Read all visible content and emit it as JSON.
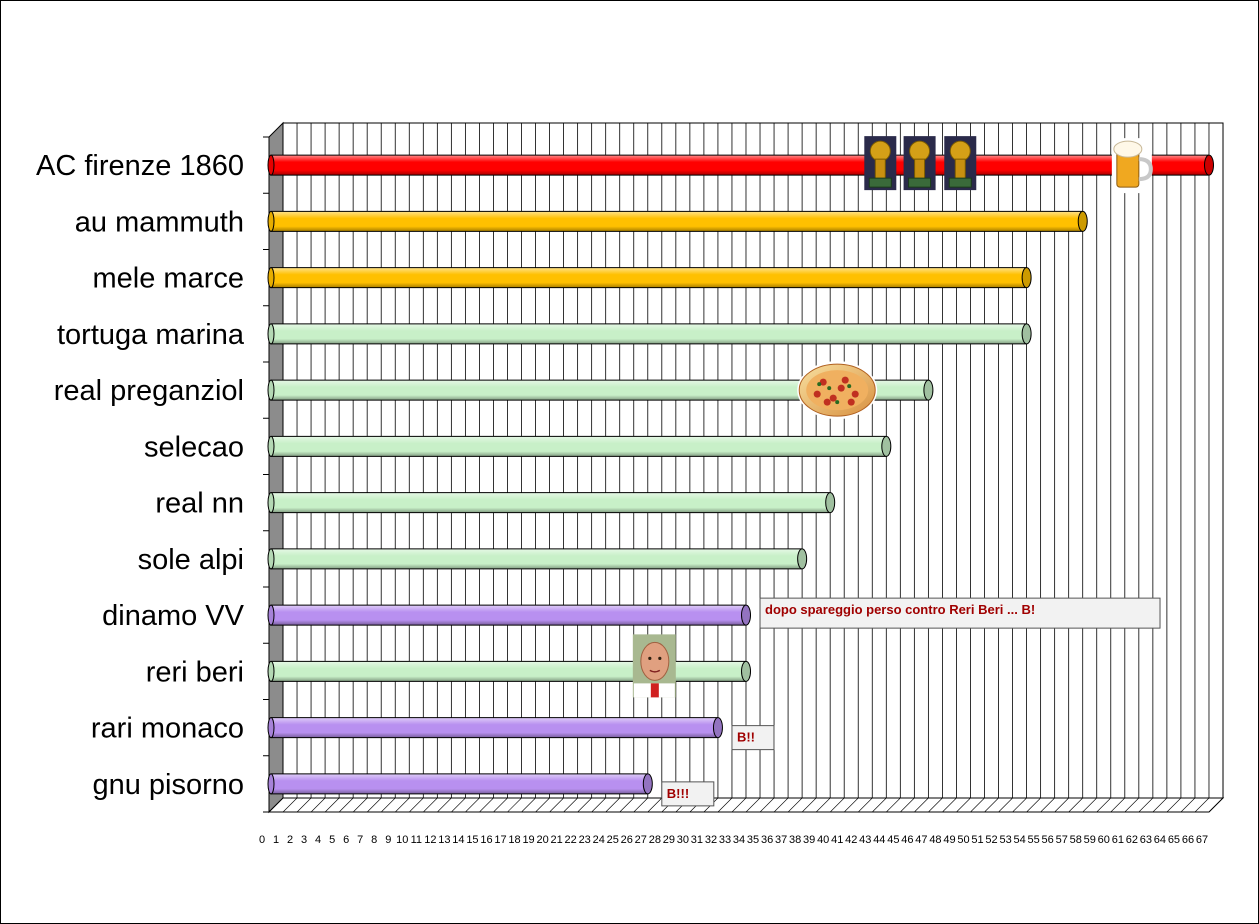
{
  "chart_data": {
    "type": "bar",
    "orientation": "horizontal",
    "categories": [
      "AC firenze 1860",
      "au mammuth",
      "mele marce",
      "tortuga marina",
      "real preganziol",
      "selecao",
      "real nn",
      "sole alpi",
      "dinamo VV",
      "reri beri",
      "rari monaco",
      "gnu pisorno"
    ],
    "values": [
      67,
      58,
      54,
      54,
      47,
      44,
      40,
      38,
      34,
      34,
      32,
      27
    ],
    "bar_colors": [
      "#ff0000",
      "#ffc000",
      "#ffc000",
      "#c8f0c8",
      "#c8f0c8",
      "#c8f0c8",
      "#c8f0c8",
      "#c8f0c8",
      "#b890f0",
      "#c8f0c8",
      "#b890f0",
      "#b890f0"
    ],
    "xlim": [
      0,
      67
    ],
    "x_ticks": [
      0,
      1,
      2,
      3,
      4,
      5,
      6,
      7,
      8,
      9,
      10,
      11,
      12,
      13,
      14,
      15,
      16,
      17,
      18,
      19,
      20,
      21,
      22,
      23,
      24,
      25,
      26,
      27,
      28,
      29,
      30,
      31,
      32,
      33,
      34,
      35,
      36,
      37,
      38,
      39,
      40,
      41,
      42,
      43,
      44,
      45,
      46,
      47,
      48,
      49,
      50,
      51,
      52,
      53,
      54,
      55,
      56,
      57,
      58,
      59,
      60,
      61,
      62,
      63,
      64,
      65,
      66,
      67
    ],
    "grid": "vertical",
    "style": "3d-cylinder",
    "annotations": [
      {
        "text": "dopo spareggio perso contro Reri Beri ... B!",
        "category": "dinamo VV"
      },
      {
        "text": "B!!",
        "category": "rari monaco"
      },
      {
        "text": "B!!!",
        "category": "gnu pisorno"
      }
    ],
    "pictures": [
      {
        "icon": "trophy-icon",
        "category": "AC firenze 1860",
        "x": 43.5
      },
      {
        "icon": "trophy-icon",
        "category": "AC firenze 1860",
        "x": 46.3
      },
      {
        "icon": "trophy-icon",
        "category": "AC firenze 1860",
        "x": 49.2
      },
      {
        "icon": "beer-mug-icon",
        "category": "AC firenze 1860",
        "x": 61.5
      },
      {
        "icon": "pizza-icon",
        "category": "real preganziol",
        "x": 40.5
      },
      {
        "icon": "player-photo-icon",
        "category": "reri beri",
        "x": 27.5
      }
    ]
  }
}
